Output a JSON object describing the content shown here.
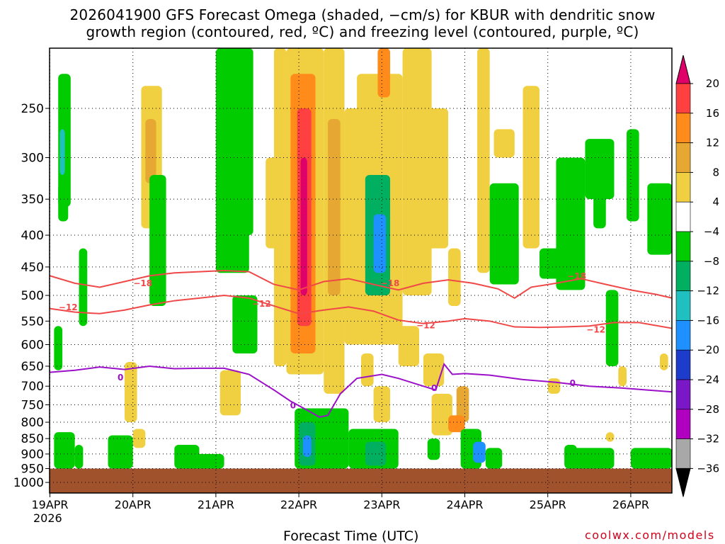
{
  "title": {
    "line1": "2026041900 GFS Forecast Omega (shaded, −cm/s) for KBUR with dendritic snow",
    "line2": "growth region (contoured, red, ºC) and freezing level (contoured, purple, ºC)"
  },
  "xlabel": "Forecast Time (UTC)",
  "year_label": "2026",
  "credit": "coolwx.com/models",
  "chart_data": {
    "type": "heatmap",
    "x_axis": {
      "ticks": [
        "19APR",
        "20APR",
        "21APR",
        "22APR",
        "23APR",
        "24APR",
        "25APR",
        "26APR"
      ],
      "day_range": [
        0,
        7.5
      ]
    },
    "y_axis": {
      "ticks": [
        250,
        300,
        350,
        400,
        450,
        500,
        550,
        600,
        650,
        700,
        750,
        800,
        850,
        900,
        950,
        1000
      ],
      "range_hPa": [
        200,
        1040
      ]
    },
    "colorbar": {
      "labels": [
        "20",
        "16",
        "12",
        "8",
        "4",
        "−4",
        "−8",
        "−12",
        "−16",
        "−20",
        "−24",
        "−28",
        "−32",
        "−36"
      ],
      "colors": [
        "#ff4040",
        "#ff8c1a",
        "#e6a832",
        "#f0d040",
        "#ffffff",
        "#00cc00",
        "#00b060",
        "#20c0c0",
        "#1e90ff",
        "#1e3ccc",
        "#7a18c8",
        "#b000c0",
        "#a8a8a8"
      ],
      "top_triangle_color": "#e0006a",
      "bottom_triangle_color": "#000000"
    },
    "ground_color": "#a0522d",
    "ground_pressure_hPa": 950,
    "omega_cells": [
      {
        "x0": 0.1,
        "x1": 0.25,
        "p0": 220,
        "p1": 360,
        "v": -6
      },
      {
        "x0": 0.1,
        "x1": 0.22,
        "p0": 330,
        "p1": 380,
        "v": -8
      },
      {
        "x0": 0.12,
        "x1": 0.18,
        "p0": 270,
        "p1": 320,
        "v": -13
      },
      {
        "x0": 0.05,
        "x1": 0.15,
        "p0": 560,
        "p1": 660,
        "v": -6
      },
      {
        "x0": 0.05,
        "x1": 0.3,
        "p0": 830,
        "p1": 950,
        "v": -6
      },
      {
        "x0": 0.35,
        "x1": 0.45,
        "p0": 420,
        "p1": 560,
        "v": -6
      },
      {
        "x0": 0.3,
        "x1": 0.4,
        "p0": 870,
        "p1": 950,
        "v": -6
      },
      {
        "x0": 0.9,
        "x1": 1.05,
        "p0": 640,
        "p1": 800,
        "v": 5
      },
      {
        "x0": 1.1,
        "x1": 1.35,
        "p0": 230,
        "p1": 390,
        "v": 6
      },
      {
        "x0": 1.15,
        "x1": 1.28,
        "p0": 260,
        "p1": 330,
        "v": 10
      },
      {
        "x0": 0.7,
        "x1": 1.0,
        "p0": 840,
        "p1": 950,
        "v": -6
      },
      {
        "x0": 1.0,
        "x1": 1.15,
        "p0": 820,
        "p1": 880,
        "v": 6
      },
      {
        "x0": 1.5,
        "x1": 1.8,
        "p0": 870,
        "p1": 950,
        "v": -6
      },
      {
        "x0": 1.2,
        "x1": 1.4,
        "p0": 320,
        "p1": 520,
        "v": -6
      },
      {
        "x0": 2.0,
        "x1": 2.4,
        "p0": 200,
        "p1": 460,
        "v": -6
      },
      {
        "x0": 2.3,
        "x1": 2.45,
        "p0": 200,
        "p1": 400,
        "v": -8
      },
      {
        "x0": 2.6,
        "x1": 2.75,
        "p0": 300,
        "p1": 420,
        "v": 5
      },
      {
        "x0": 2.05,
        "x1": 2.3,
        "p0": 660,
        "p1": 780,
        "v": 5
      },
      {
        "x0": 2.2,
        "x1": 2.5,
        "p0": 500,
        "p1": 620,
        "v": -6
      },
      {
        "x0": 1.7,
        "x1": 2.1,
        "p0": 900,
        "p1": 950,
        "v": -6
      },
      {
        "x0": 2.7,
        "x1": 2.85,
        "p0": 200,
        "p1": 650,
        "v": 5
      },
      {
        "x0": 2.85,
        "x1": 3.3,
        "p0": 200,
        "p1": 670,
        "v": 7
      },
      {
        "x0": 2.9,
        "x1": 3.2,
        "p0": 220,
        "p1": 620,
        "v": 12
      },
      {
        "x0": 2.98,
        "x1": 3.15,
        "p0": 250,
        "p1": 560,
        "v": 17
      },
      {
        "x0": 3.02,
        "x1": 3.1,
        "p0": 300,
        "p1": 500,
        "v": 22
      },
      {
        "x0": 3.3,
        "x1": 3.55,
        "p0": 200,
        "p1": 720,
        "v": 6
      },
      {
        "x0": 3.35,
        "x1": 3.5,
        "p0": 260,
        "p1": 500,
        "v": 9
      },
      {
        "x0": 2.95,
        "x1": 3.6,
        "p0": 760,
        "p1": 950,
        "v": -6
      },
      {
        "x0": 3.0,
        "x1": 3.2,
        "p0": 800,
        "p1": 940,
        "v": -12
      },
      {
        "x0": 3.05,
        "x1": 3.15,
        "p0": 840,
        "p1": 910,
        "v": -17
      },
      {
        "x0": 3.55,
        "x1": 3.75,
        "p0": 250,
        "p1": 600,
        "v": 5
      },
      {
        "x0": 3.7,
        "x1": 4.25,
        "p0": 220,
        "p1": 600,
        "v": 5
      },
      {
        "x0": 3.8,
        "x1": 4.1,
        "p0": 320,
        "p1": 500,
        "v": -10
      },
      {
        "x0": 3.9,
        "x1": 4.05,
        "p0": 370,
        "p1": 460,
        "v": -17
      },
      {
        "x0": 3.75,
        "x1": 3.9,
        "p0": 620,
        "p1": 700,
        "v": 5
      },
      {
        "x0": 3.9,
        "x1": 4.1,
        "p0": 700,
        "p1": 800,
        "v": 7
      },
      {
        "x0": 3.6,
        "x1": 4.2,
        "p0": 820,
        "p1": 950,
        "v": -6
      },
      {
        "x0": 3.8,
        "x1": 4.05,
        "p0": 860,
        "p1": 940,
        "v": -12
      },
      {
        "x0": 3.95,
        "x1": 4.1,
        "p0": 200,
        "p1": 240,
        "v": 14
      },
      {
        "x0": 4.25,
        "x1": 4.6,
        "p0": 200,
        "p1": 500,
        "v": 5
      },
      {
        "x0": 4.5,
        "x1": 4.8,
        "p0": 250,
        "p1": 420,
        "v": 7
      },
      {
        "x0": 4.2,
        "x1": 4.45,
        "p0": 560,
        "p1": 650,
        "v": 5
      },
      {
        "x0": 4.5,
        "x1": 4.75,
        "p0": 620,
        "p1": 700,
        "v": 5
      },
      {
        "x0": 4.6,
        "x1": 4.85,
        "p0": 720,
        "p1": 840,
        "v": 7
      },
      {
        "x0": 4.9,
        "x1": 5.05,
        "p0": 700,
        "p1": 800,
        "v": 9
      },
      {
        "x0": 4.8,
        "x1": 5.0,
        "p0": 780,
        "p1": 830,
        "v": 12
      },
      {
        "x0": 4.55,
        "x1": 4.7,
        "p0": 850,
        "p1": 920,
        "v": -6
      },
      {
        "x0": 4.95,
        "x1": 5.2,
        "p0": 820,
        "p1": 950,
        "v": -6
      },
      {
        "x0": 5.1,
        "x1": 5.25,
        "p0": 860,
        "p1": 930,
        "v": -18
      },
      {
        "x0": 4.8,
        "x1": 4.95,
        "p0": 420,
        "p1": 520,
        "v": 5
      },
      {
        "x0": 5.15,
        "x1": 5.3,
        "p0": 200,
        "p1": 460,
        "v": 5
      },
      {
        "x0": 5.3,
        "x1": 5.65,
        "p0": 330,
        "p1": 480,
        "v": -6
      },
      {
        "x0": 5.45,
        "x1": 5.65,
        "p0": 400,
        "p1": 480,
        "v": -8
      },
      {
        "x0": 5.25,
        "x1": 5.45,
        "p0": 880,
        "p1": 950,
        "v": -6
      },
      {
        "x0": 5.35,
        "x1": 5.6,
        "p0": 270,
        "p1": 300,
        "v": 5
      },
      {
        "x0": 5.7,
        "x1": 5.9,
        "p0": 230,
        "p1": 420,
        "v": 5
      },
      {
        "x0": 5.9,
        "x1": 6.2,
        "p0": 420,
        "p1": 470,
        "v": -6
      },
      {
        "x0": 6.1,
        "x1": 6.45,
        "p0": 300,
        "p1": 490,
        "v": -6
      },
      {
        "x0": 6.45,
        "x1": 6.8,
        "p0": 280,
        "p1": 350,
        "v": -6
      },
      {
        "x0": 6.55,
        "x1": 6.7,
        "p0": 340,
        "p1": 390,
        "v": -6
      },
      {
        "x0": 6.95,
        "x1": 7.1,
        "p0": 270,
        "p1": 380,
        "v": -6
      },
      {
        "x0": 7.2,
        "x1": 7.5,
        "p0": 330,
        "p1": 430,
        "v": -6
      },
      {
        "x0": 6.7,
        "x1": 6.85,
        "p0": 490,
        "p1": 650,
        "v": -6
      },
      {
        "x0": 6.2,
        "x1": 6.8,
        "p0": 880,
        "p1": 950,
        "v": -6
      },
      {
        "x0": 7.0,
        "x1": 7.5,
        "p0": 880,
        "p1": 950,
        "v": -6
      },
      {
        "x0": 6.0,
        "x1": 6.15,
        "p0": 680,
        "p1": 720,
        "v": 5
      },
      {
        "x0": 6.85,
        "x1": 6.95,
        "p0": 650,
        "p1": 700,
        "v": 5
      },
      {
        "x0": 7.35,
        "x1": 7.45,
        "p0": 620,
        "p1": 660,
        "v": 5
      },
      {
        "x0": 6.7,
        "x1": 6.8,
        "p0": 830,
        "p1": 860,
        "v": 5
      },
      {
        "x0": 6.2,
        "x1": 6.35,
        "p0": 870,
        "p1": 920,
        "v": -6
      }
    ],
    "contours": {
      "freezing_level_0C": {
        "color": "#9b10c8",
        "label": "0",
        "x": [
          0,
          0.3,
          0.6,
          0.9,
          1.2,
          1.5,
          1.8,
          2.1,
          2.4,
          2.7,
          2.9,
          3.1,
          3.25,
          3.35,
          3.5,
          3.7,
          4.0,
          4.2,
          4.5,
          4.65,
          4.75,
          4.85,
          5.0,
          5.3,
          5.7,
          6.1,
          6.5,
          6.9,
          7.2,
          7.5
        ],
        "p": [
          665,
          660,
          652,
          658,
          650,
          656,
          655,
          655,
          670,
          710,
          740,
          765,
          785,
          780,
          720,
          680,
          670,
          680,
          700,
          710,
          645,
          670,
          668,
          672,
          683,
          690,
          700,
          705,
          710,
          715
        ]
      },
      "dgz_minus12C": {
        "color": "#f04848",
        "label": "−12",
        "x": [
          0,
          0.3,
          0.6,
          0.9,
          1.2,
          1.5,
          1.8,
          2.1,
          2.4,
          2.7,
          3.0,
          3.3,
          3.6,
          3.9,
          4.2,
          4.5,
          4.8,
          5.0,
          5.3,
          5.6,
          5.9,
          6.2,
          6.5,
          6.8,
          7.1,
          7.5
        ],
        "p": [
          525,
          532,
          535,
          528,
          518,
          510,
          505,
          500,
          505,
          520,
          535,
          528,
          522,
          530,
          548,
          555,
          550,
          545,
          550,
          562,
          563,
          562,
          560,
          553,
          553,
          565
        ]
      },
      "dgz_minus18C": {
        "color": "#f04848",
        "label": "−18",
        "x": [
          0,
          0.3,
          0.6,
          0.9,
          1.2,
          1.5,
          1.8,
          2.1,
          2.4,
          2.7,
          3.0,
          3.3,
          3.6,
          3.9,
          4.2,
          4.5,
          4.8,
          5.1,
          5.4,
          5.6,
          5.8,
          6.1,
          6.4,
          6.7,
          7.0,
          7.3,
          7.5
        ],
        "p": [
          465,
          478,
          485,
          475,
          465,
          460,
          458,
          456,
          458,
          480,
          490,
          475,
          470,
          480,
          490,
          478,
          472,
          478,
          488,
          505,
          485,
          478,
          470,
          480,
          490,
          498,
          505
        ]
      }
    },
    "contour_label_positions": {
      "freezing_level_0C": [
        [
          0.85,
          678
        ],
        [
          2.93,
          752
        ],
        [
          4.63,
          705
        ],
        [
          6.3,
          692
        ]
      ],
      "dgz_minus12C": [
        [
          0.22,
          523
        ],
        [
          2.55,
          516
        ],
        [
          4.53,
          559
        ],
        [
          6.58,
          568
        ]
      ],
      "dgz_minus18C": [
        [
          1.12,
          478
        ],
        [
          4.1,
          478
        ],
        [
          6.35,
          466
        ]
      ]
    }
  }
}
